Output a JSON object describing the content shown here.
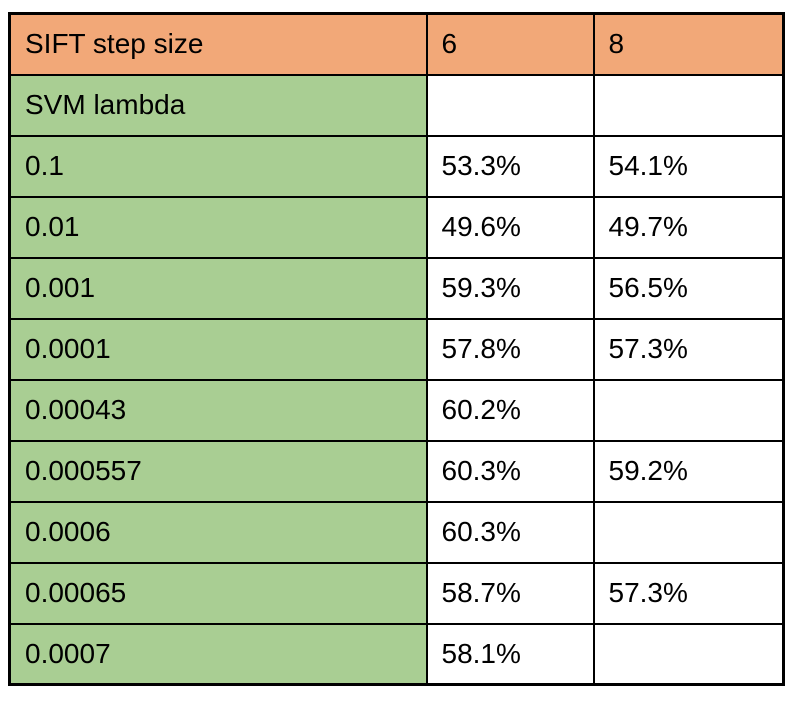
{
  "colors": {
    "header_bg": "#F2A878",
    "label_bg": "#A9CE93",
    "cell_bg": "#FFFFFF",
    "border": "#000000",
    "text": "#000000"
  },
  "table": {
    "corner_header": "SIFT step size",
    "column_headers": [
      "6",
      "8"
    ],
    "row_group_header": "SVM lambda",
    "rows": [
      {
        "label": "0.1",
        "values": [
          "53.3%",
          "54.1%"
        ]
      },
      {
        "label": "0.01",
        "values": [
          "49.6%",
          "49.7%"
        ]
      },
      {
        "label": "0.001",
        "values": [
          "59.3%",
          "56.5%"
        ]
      },
      {
        "label": "0.0001",
        "values": [
          "57.8%",
          "57.3%"
        ]
      },
      {
        "label": "0.00043",
        "values": [
          "60.2%",
          ""
        ]
      },
      {
        "label": "0.000557",
        "values": [
          "60.3%",
          "59.2%"
        ]
      },
      {
        "label": "0.0006",
        "values": [
          "60.3%",
          ""
        ]
      },
      {
        "label": "0.00065",
        "values": [
          "58.7%",
          "57.3%"
        ]
      },
      {
        "label": "0.0007",
        "values": [
          "58.1%",
          ""
        ]
      }
    ]
  },
  "chart_data": {
    "type": "table",
    "column_variable": "SIFT step size",
    "row_variable": "SVM lambda",
    "columns": [
      "6",
      "8"
    ],
    "row_labels": [
      "0.1",
      "0.01",
      "0.001",
      "0.0001",
      "0.00043",
      "0.000557",
      "0.0006",
      "0.00065",
      "0.0007"
    ],
    "series": [
      {
        "name": "6",
        "values": [
          "53.3%",
          "49.6%",
          "59.3%",
          "57.8%",
          "60.2%",
          "60.3%",
          "60.3%",
          "58.7%",
          "58.1%"
        ]
      },
      {
        "name": "8",
        "values": [
          "54.1%",
          "49.7%",
          "56.5%",
          "57.3%",
          "",
          "59.2%",
          "",
          "57.3%",
          ""
        ]
      }
    ],
    "layout": {
      "header_fill": "#F2A878",
      "row_label_fill": "#A9CE93",
      "grid": true
    }
  }
}
